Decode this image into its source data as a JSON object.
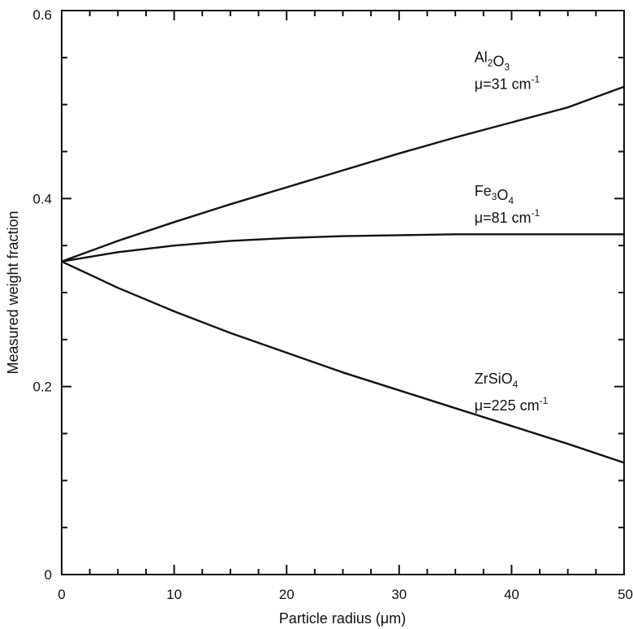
{
  "chart_data": {
    "type": "line",
    "xlabel": "Particle radius (μm)",
    "ylabel": "Measured weight fraction",
    "xlim": [
      0,
      50
    ],
    "ylim": [
      0,
      0.6
    ],
    "x_ticks": [
      "0",
      "10",
      "20",
      "30",
      "40",
      "50"
    ],
    "y_ticks": [
      "0",
      "0.2",
      "0.4",
      "0.6"
    ],
    "grid": false,
    "series": [
      {
        "name": "Al2O3",
        "x": [
          0,
          5,
          10,
          15,
          20,
          25,
          30,
          35,
          40,
          45,
          50
        ],
        "y": [
          0.333,
          0.355,
          0.375,
          0.394,
          0.412,
          0.43,
          0.448,
          0.465,
          0.481,
          0.497,
          0.519
        ]
      },
      {
        "name": "Fe3O4",
        "x": [
          0,
          5,
          10,
          15,
          20,
          25,
          30,
          35,
          40,
          45,
          50
        ],
        "y": [
          0.333,
          0.343,
          0.35,
          0.355,
          0.358,
          0.36,
          0.361,
          0.362,
          0.362,
          0.362,
          0.362
        ]
      },
      {
        "name": "ZrSiO4",
        "x": [
          0,
          5,
          10,
          15,
          20,
          25,
          30,
          35,
          40,
          45,
          50
        ],
        "y": [
          0.333,
          0.305,
          0.28,
          0.257,
          0.236,
          0.215,
          0.196,
          0.177,
          0.158,
          0.139,
          0.119
        ]
      }
    ],
    "annotations": [
      {
        "formula_parts": [
          [
            "Al",
            ""
          ],
          [
            "2",
            "sub"
          ],
          [
            "O",
            ""
          ],
          [
            "3",
            "sub"
          ]
        ],
        "mu_text": "μ=31 cm",
        "mu_sup": "-1",
        "at_x": 36.7,
        "at_y": 0.545
      },
      {
        "formula_parts": [
          [
            "Fe",
            ""
          ],
          [
            "3",
            "sub"
          ],
          [
            "O",
            ""
          ],
          [
            "4",
            "sub"
          ]
        ],
        "mu_text": "μ=81 cm",
        "mu_sup": "-1",
        "at_x": 36.7,
        "at_y": 0.403
      },
      {
        "formula_parts": [
          [
            "ZrSiO",
            ""
          ],
          [
            "4",
            "sub"
          ]
        ],
        "mu_text": "μ=225 cm",
        "mu_sup": "-1",
        "at_x": 36.7,
        "at_y": 0.203
      }
    ]
  }
}
